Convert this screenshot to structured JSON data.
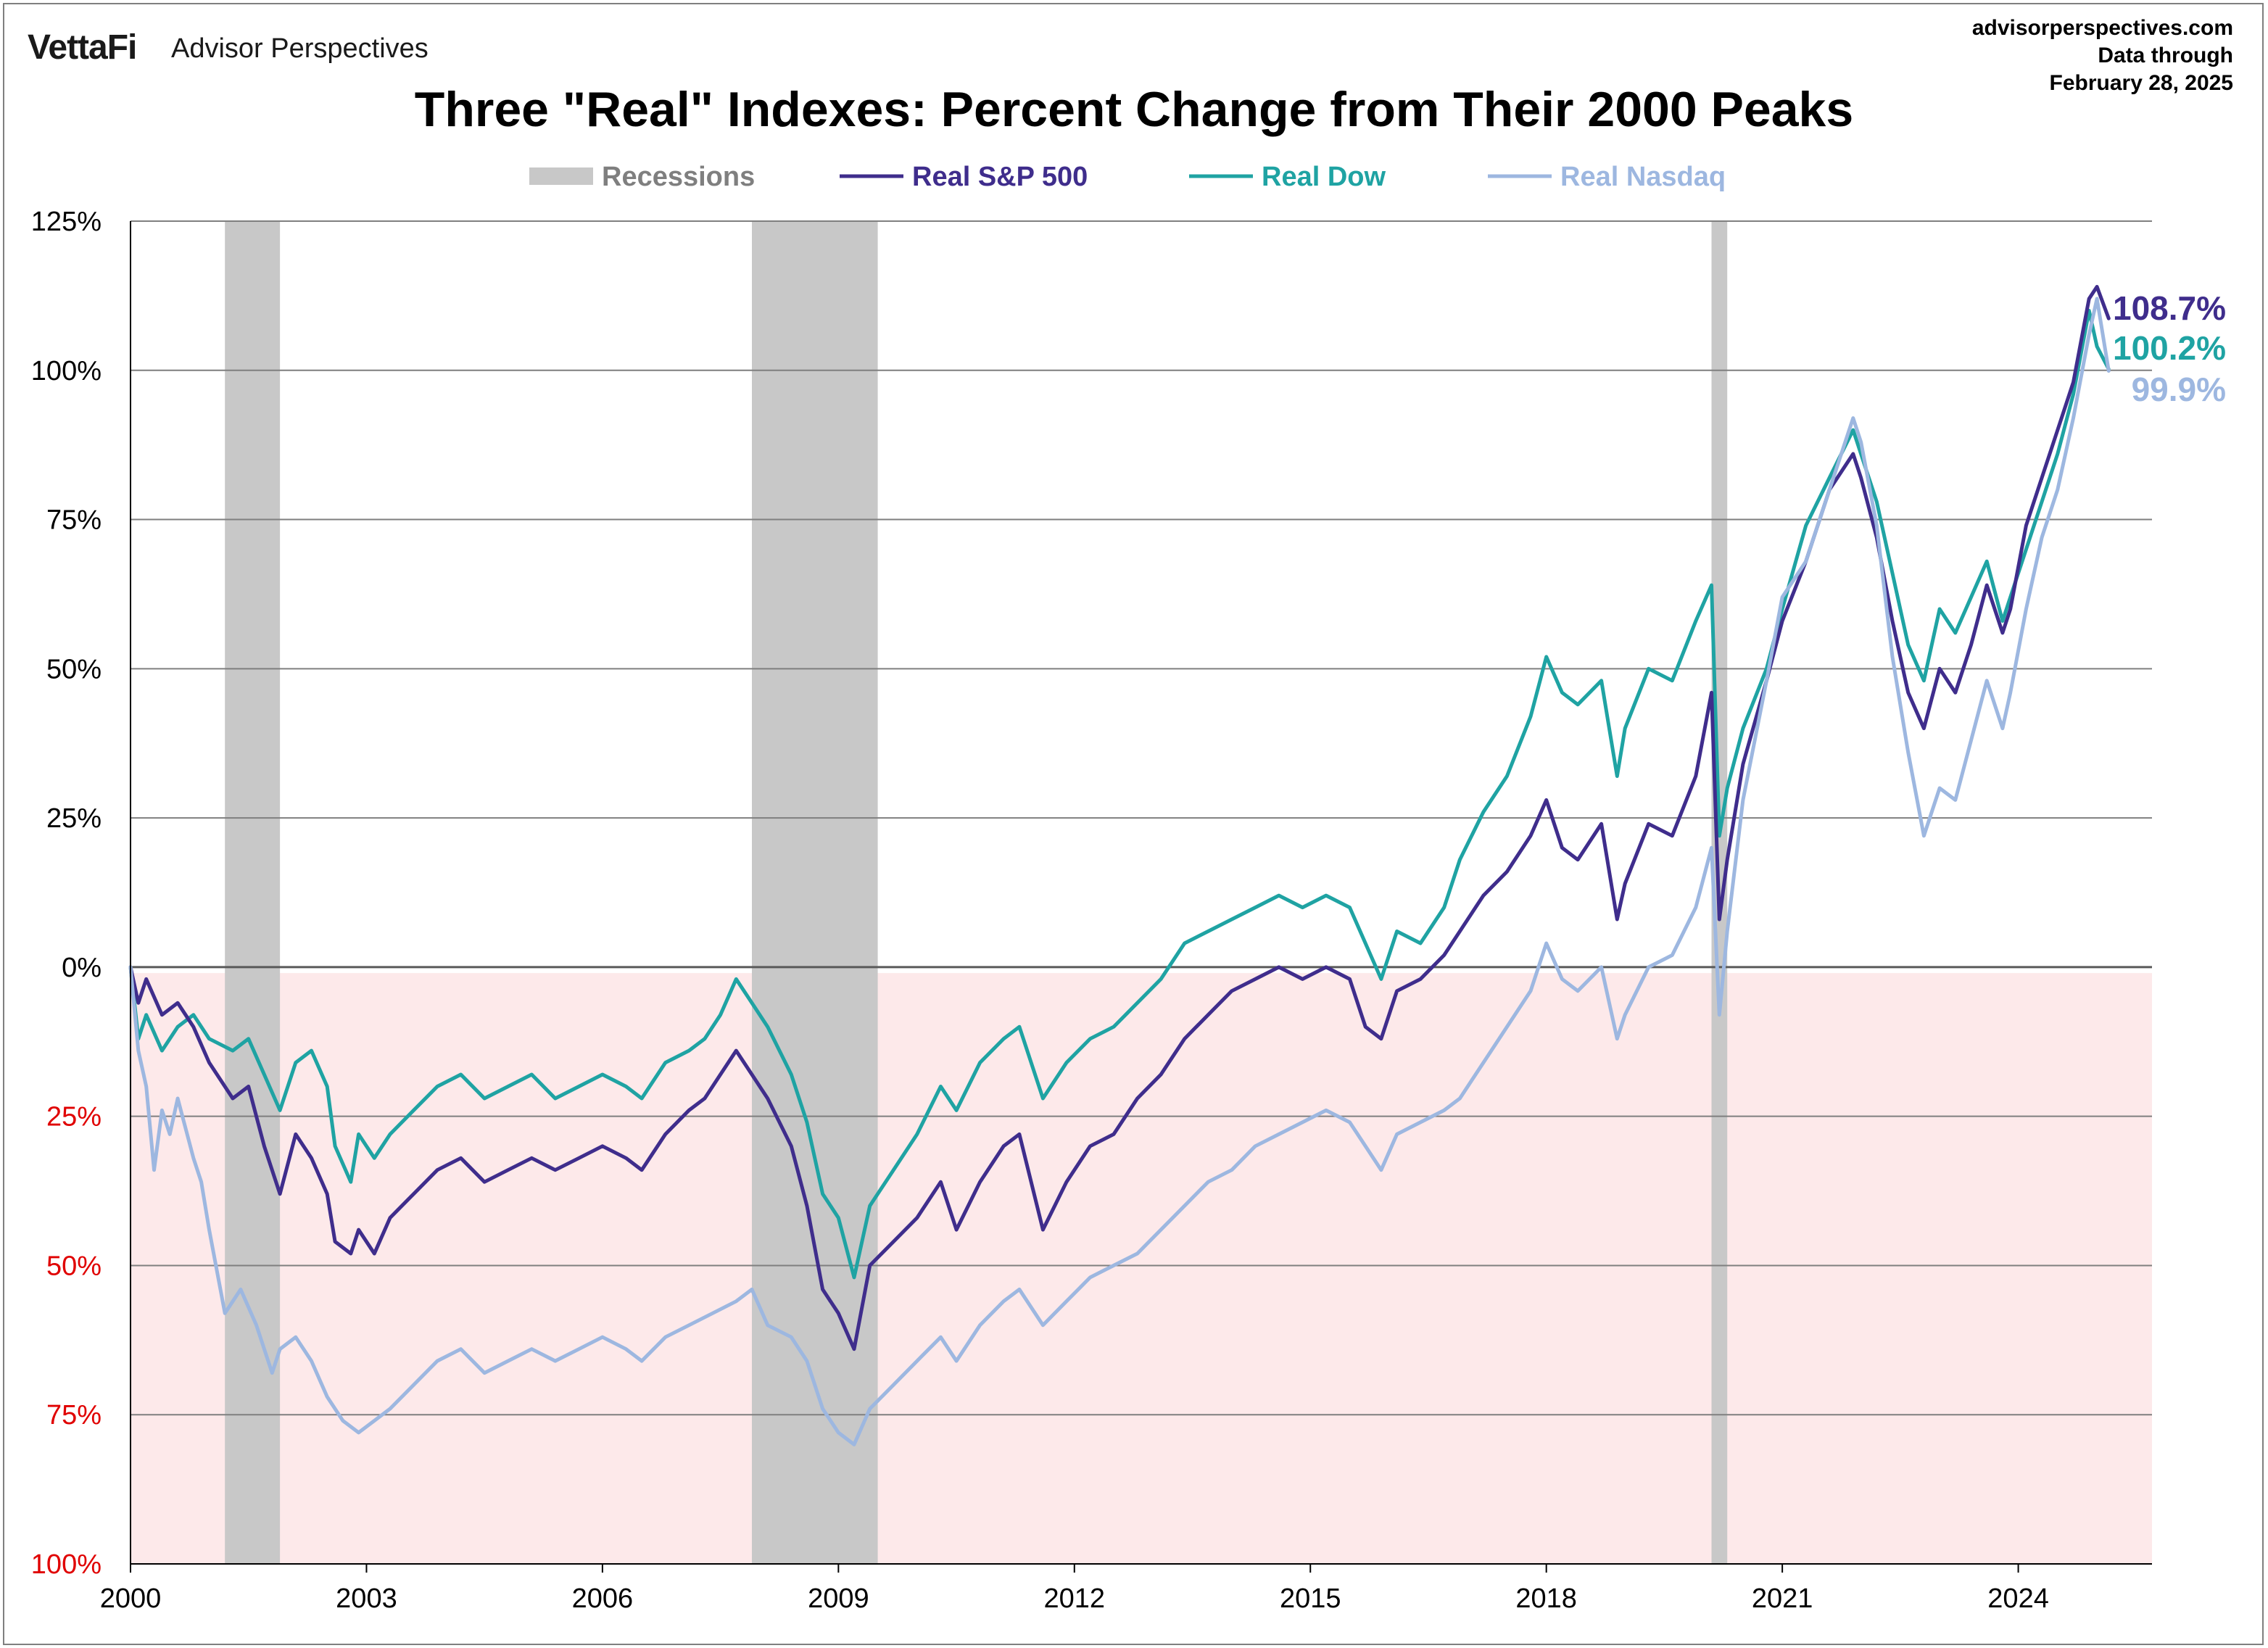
{
  "header": {
    "logo": "VettaFi",
    "brand": "Advisor Perspectives",
    "source_line1": "advisorperspectives.com",
    "source_line2": "Data through",
    "source_line3": "February 28, 2025"
  },
  "colors": {
    "sp500": "#3f2d8c",
    "dow": "#1fa3a3",
    "nasdaq": "#9db7e0",
    "recession": "#c8c8c8",
    "negative_zone": "#fde9ea",
    "grid": "#7f7f7f",
    "negative_tick": "#e00000"
  },
  "chart_data": {
    "type": "line",
    "title": "Three \"Real\" Indexes: Percent Change from Their 2000 Peaks",
    "xlabel": "",
    "ylabel": "",
    "xlim": [
      2000,
      2025.7
    ],
    "ylim": [
      -100,
      125
    ],
    "x_ticks": [
      {
        "value": 2000,
        "label": "2000"
      },
      {
        "value": 2003,
        "label": "2003"
      },
      {
        "value": 2006,
        "label": "2006"
      },
      {
        "value": 2009,
        "label": "2009"
      },
      {
        "value": 2012,
        "label": "2012"
      },
      {
        "value": 2015,
        "label": "2015"
      },
      {
        "value": 2018,
        "label": "2018"
      },
      {
        "value": 2021,
        "label": "2021"
      },
      {
        "value": 2024,
        "label": "2024"
      }
    ],
    "y_ticks": [
      {
        "value": 125,
        "label": "125%",
        "negative": false
      },
      {
        "value": 100,
        "label": "100%",
        "negative": false
      },
      {
        "value": 75,
        "label": "75%",
        "negative": false
      },
      {
        "value": 50,
        "label": "50%",
        "negative": false
      },
      {
        "value": 25,
        "label": "25%",
        "negative": false
      },
      {
        "value": 0,
        "label": "0%",
        "negative": false
      },
      {
        "value": -25,
        "label": "25%",
        "negative": true
      },
      {
        "value": -50,
        "label": "50%",
        "negative": true
      },
      {
        "value": -75,
        "label": "75%",
        "negative": true
      },
      {
        "value": -100,
        "label": "100%",
        "negative": true
      }
    ],
    "grid": true,
    "legend_position": "top-center",
    "legend": [
      {
        "label": "Recessions",
        "kind": "bar",
        "color_key": "recession",
        "text_color": "#7f7f7f"
      },
      {
        "label": "Real S&P 500",
        "kind": "line",
        "color_key": "sp500",
        "text_color": "#3f2d8c"
      },
      {
        "label": "Real Dow",
        "kind": "line",
        "color_key": "dow",
        "text_color": "#1fa3a3"
      },
      {
        "label": "Real Nasdaq",
        "kind": "line",
        "color_key": "nasdaq",
        "text_color": "#9db7e0"
      }
    ],
    "recessions": [
      {
        "start": 2001.2,
        "end": 2001.9
      },
      {
        "start": 2007.9,
        "end": 2009.5
      },
      {
        "start": 2020.1,
        "end": 2020.3
      }
    ],
    "series": [
      {
        "name": "Real Dow",
        "color_key": "dow",
        "x": [
          2000.0,
          2000.1,
          2000.2,
          2000.4,
          2000.6,
          2000.8,
          2001.0,
          2001.3,
          2001.5,
          2001.7,
          2001.9,
          2002.1,
          2002.3,
          2002.5,
          2002.6,
          2002.8,
          2002.9,
          2003.1,
          2003.3,
          2003.6,
          2003.9,
          2004.2,
          2004.5,
          2004.8,
          2005.1,
          2005.4,
          2005.7,
          2006.0,
          2006.3,
          2006.5,
          2006.8,
          2007.1,
          2007.3,
          2007.5,
          2007.7,
          2007.9,
          2008.1,
          2008.4,
          2008.6,
          2008.8,
          2009.0,
          2009.2,
          2009.4,
          2009.7,
          2010.0,
          2010.3,
          2010.5,
          2010.8,
          2011.1,
          2011.3,
          2011.6,
          2011.9,
          2012.2,
          2012.5,
          2012.8,
          2013.1,
          2013.4,
          2013.7,
          2014.0,
          2014.3,
          2014.6,
          2014.9,
          2015.2,
          2015.5,
          2015.7,
          2015.9,
          2016.1,
          2016.4,
          2016.7,
          2016.9,
          2017.2,
          2017.5,
          2017.8,
          2018.0,
          2018.2,
          2018.4,
          2018.7,
          2018.9,
          2019.0,
          2019.3,
          2019.6,
          2019.9,
          2020.1,
          2020.2,
          2020.3,
          2020.5,
          2020.8,
          2021.0,
          2021.3,
          2021.6,
          2021.9,
          2022.0,
          2022.2,
          2022.4,
          2022.6,
          2022.8,
          2023.0,
          2023.2,
          2023.4,
          2023.6,
          2023.8,
          2023.9,
          2024.1,
          2024.3,
          2024.5,
          2024.7,
          2024.9,
          2025.0,
          2025.15
        ],
        "values": [
          0,
          -12,
          -8,
          -14,
          -10,
          -8,
          -12,
          -14,
          -12,
          -18,
          -24,
          -16,
          -14,
          -20,
          -30,
          -36,
          -28,
          -32,
          -28,
          -24,
          -20,
          -18,
          -22,
          -20,
          -18,
          -22,
          -20,
          -18,
          -20,
          -22,
          -16,
          -14,
          -12,
          -8,
          -2,
          -6,
          -10,
          -18,
          -26,
          -38,
          -42,
          -52,
          -40,
          -34,
          -28,
          -20,
          -24,
          -16,
          -12,
          -10,
          -22,
          -16,
          -12,
          -10,
          -6,
          -2,
          4,
          6,
          8,
          10,
          12,
          10,
          12,
          10,
          4,
          -2,
          6,
          4,
          10,
          18,
          26,
          32,
          42,
          52,
          46,
          44,
          48,
          32,
          40,
          50,
          48,
          58,
          64,
          22,
          30,
          40,
          50,
          60,
          74,
          82,
          90,
          86,
          78,
          66,
          54,
          48,
          60,
          56,
          62,
          68,
          58,
          62,
          70,
          78,
          86,
          96,
          110,
          104,
          100.2
        ]
      },
      {
        "name": "Real S&P 500",
        "color_key": "sp500",
        "x": [
          2000.0,
          2000.1,
          2000.2,
          2000.4,
          2000.6,
          2000.8,
          2001.0,
          2001.3,
          2001.5,
          2001.7,
          2001.9,
          2002.1,
          2002.3,
          2002.5,
          2002.6,
          2002.8,
          2002.9,
          2003.1,
          2003.3,
          2003.6,
          2003.9,
          2004.2,
          2004.5,
          2004.8,
          2005.1,
          2005.4,
          2005.7,
          2006.0,
          2006.3,
          2006.5,
          2006.8,
          2007.1,
          2007.3,
          2007.5,
          2007.7,
          2007.9,
          2008.1,
          2008.4,
          2008.6,
          2008.8,
          2009.0,
          2009.2,
          2009.4,
          2009.7,
          2010.0,
          2010.3,
          2010.5,
          2010.8,
          2011.1,
          2011.3,
          2011.6,
          2011.9,
          2012.2,
          2012.5,
          2012.8,
          2013.1,
          2013.4,
          2013.7,
          2014.0,
          2014.3,
          2014.6,
          2014.9,
          2015.2,
          2015.5,
          2015.7,
          2015.9,
          2016.1,
          2016.4,
          2016.7,
          2016.9,
          2017.2,
          2017.5,
          2017.8,
          2018.0,
          2018.2,
          2018.4,
          2018.7,
          2018.9,
          2019.0,
          2019.3,
          2019.6,
          2019.9,
          2020.1,
          2020.2,
          2020.3,
          2020.5,
          2020.8,
          2021.0,
          2021.3,
          2021.6,
          2021.9,
          2022.0,
          2022.2,
          2022.4,
          2022.6,
          2022.8,
          2023.0,
          2023.2,
          2023.4,
          2023.6,
          2023.8,
          2023.9,
          2024.1,
          2024.3,
          2024.5,
          2024.7,
          2024.9,
          2025.0,
          2025.15
        ],
        "values": [
          0,
          -6,
          -2,
          -8,
          -6,
          -10,
          -16,
          -22,
          -20,
          -30,
          -38,
          -28,
          -32,
          -38,
          -46,
          -48,
          -44,
          -48,
          -42,
          -38,
          -34,
          -32,
          -36,
          -34,
          -32,
          -34,
          -32,
          -30,
          -32,
          -34,
          -28,
          -24,
          -22,
          -18,
          -14,
          -18,
          -22,
          -30,
          -40,
          -54,
          -58,
          -64,
          -50,
          -46,
          -42,
          -36,
          -44,
          -36,
          -30,
          -28,
          -44,
          -36,
          -30,
          -28,
          -22,
          -18,
          -12,
          -8,
          -4,
          -2,
          0,
          -2,
          0,
          -2,
          -10,
          -12,
          -4,
          -2,
          2,
          6,
          12,
          16,
          22,
          28,
          20,
          18,
          24,
          8,
          14,
          24,
          22,
          32,
          46,
          8,
          18,
          34,
          48,
          58,
          68,
          80,
          86,
          82,
          72,
          58,
          46,
          40,
          50,
          46,
          54,
          64,
          56,
          60,
          74,
          82,
          90,
          98,
          112,
          114,
          108.7
        ]
      },
      {
        "name": "Real Nasdaq",
        "color_key": "nasdaq",
        "x": [
          2000.0,
          2000.1,
          2000.2,
          2000.3,
          2000.4,
          2000.5,
          2000.6,
          2000.8,
          2000.9,
          2001.0,
          2001.2,
          2001.4,
          2001.6,
          2001.8,
          2001.9,
          2002.1,
          2002.3,
          2002.5,
          2002.7,
          2002.9,
          2003.1,
          2003.3,
          2003.6,
          2003.9,
          2004.2,
          2004.5,
          2004.8,
          2005.1,
          2005.4,
          2005.7,
          2006.0,
          2006.3,
          2006.5,
          2006.8,
          2007.1,
          2007.4,
          2007.7,
          2007.9,
          2008.1,
          2008.4,
          2008.6,
          2008.8,
          2009.0,
          2009.2,
          2009.4,
          2009.7,
          2010.0,
          2010.3,
          2010.5,
          2010.8,
          2011.1,
          2011.3,
          2011.6,
          2011.9,
          2012.2,
          2012.5,
          2012.8,
          2013.1,
          2013.4,
          2013.7,
          2014.0,
          2014.3,
          2014.6,
          2014.9,
          2015.2,
          2015.5,
          2015.7,
          2015.9,
          2016.1,
          2016.4,
          2016.7,
          2016.9,
          2017.2,
          2017.5,
          2017.8,
          2018.0,
          2018.2,
          2018.4,
          2018.7,
          2018.9,
          2019.0,
          2019.3,
          2019.6,
          2019.9,
          2020.1,
          2020.2,
          2020.3,
          2020.5,
          2020.8,
          2021.0,
          2021.3,
          2021.6,
          2021.9,
          2022.0,
          2022.2,
          2022.4,
          2022.6,
          2022.8,
          2023.0,
          2023.2,
          2023.4,
          2023.6,
          2023.8,
          2023.9,
          2024.1,
          2024.3,
          2024.5,
          2024.7,
          2024.9,
          2025.0,
          2025.15
        ],
        "values": [
          0,
          -14,
          -20,
          -34,
          -24,
          -28,
          -22,
          -32,
          -36,
          -44,
          -58,
          -54,
          -60,
          -68,
          -64,
          -62,
          -66,
          -72,
          -76,
          -78,
          -76,
          -74,
          -70,
          -66,
          -64,
          -68,
          -66,
          -64,
          -66,
          -64,
          -62,
          -64,
          -66,
          -62,
          -60,
          -58,
          -56,
          -54,
          -60,
          -62,
          -66,
          -74,
          -78,
          -80,
          -74,
          -70,
          -66,
          -62,
          -66,
          -60,
          -56,
          -54,
          -60,
          -56,
          -52,
          -50,
          -48,
          -44,
          -40,
          -36,
          -34,
          -30,
          -28,
          -26,
          -24,
          -26,
          -30,
          -34,
          -28,
          -26,
          -24,
          -22,
          -16,
          -10,
          -4,
          4,
          -2,
          -4,
          0,
          -12,
          -8,
          0,
          2,
          10,
          20,
          -8,
          6,
          28,
          48,
          62,
          68,
          80,
          92,
          88,
          74,
          52,
          36,
          22,
          30,
          28,
          38,
          48,
          40,
          46,
          60,
          72,
          80,
          92,
          106,
          112,
          99.9
        ]
      }
    ],
    "end_labels": [
      {
        "series": "Real S&P 500",
        "label": "108.7%",
        "color_key": "sp500"
      },
      {
        "series": "Real Dow",
        "label": "100.2%",
        "color_key": "dow"
      },
      {
        "series": "Real Nasdaq",
        "label": "99.9%",
        "color_key": "nasdaq"
      }
    ]
  }
}
